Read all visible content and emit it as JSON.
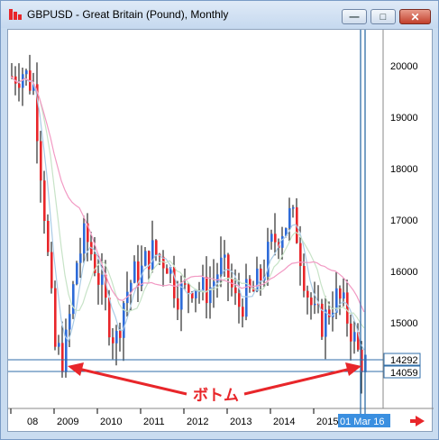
{
  "window": {
    "title": "GBPUSD - Great Britain (Pound), Monthly",
    "minimize_glyph": "—",
    "maximize_glyph": "□",
    "close_glyph": "✕"
  },
  "icons": {
    "app": "chart-app-icon",
    "minimize": "minimize-icon",
    "maximize": "maximize-icon",
    "close": "close-icon",
    "scroll": "scroll-right-arrow-icon"
  },
  "colors": {
    "up_candle": "#2e6bd8",
    "down_candle": "#e8262a",
    "ma_short": "#a9cbe6",
    "ma_mid": "#c7e3c7",
    "ma_long": "#f29ac4",
    "hline": "#2f6ea8",
    "price_tag_bg": "#ffffff",
    "cursor_tag_bg": "#3a8fe0",
    "annotation": "#e8262a"
  },
  "chart_data": {
    "type": "candlestick",
    "y_ticks": [
      "20000",
      "19000",
      "18000",
      "17000",
      "16000",
      "15000"
    ],
    "x_ticks": [
      "08",
      "2009",
      "2010",
      "2011",
      "2012",
      "2013",
      "2014",
      "2015"
    ],
    "price_tags": [
      "14292",
      "14059"
    ],
    "cursor_date": "01 Mar 16",
    "annotation_label": "ボトム",
    "ylim": [
      13300,
      20800
    ],
    "series_close_path": [
      [
        2008.0,
        19800
      ],
      [
        2008.25,
        19900
      ],
      [
        2008.5,
        19600
      ],
      [
        2008.6,
        18700
      ],
      [
        2008.75,
        17200
      ],
      [
        2008.9,
        15500
      ],
      [
        2009.0,
        14500
      ],
      [
        2009.2,
        14300
      ],
      [
        2009.35,
        15200
      ],
      [
        2009.5,
        16200
      ],
      [
        2009.7,
        16700
      ],
      [
        2009.9,
        16200
      ],
      [
        2010.0,
        15900
      ],
      [
        2010.2,
        15200
      ],
      [
        2010.4,
        14600
      ],
      [
        2010.6,
        15500
      ],
      [
        2010.8,
        15900
      ],
      [
        2011.0,
        16000
      ],
      [
        2011.2,
        16400
      ],
      [
        2011.4,
        16300
      ],
      [
        2011.6,
        16200
      ],
      [
        2011.8,
        15600
      ],
      [
        2012.0,
        15600
      ],
      [
        2012.2,
        15800
      ],
      [
        2012.4,
        15600
      ],
      [
        2012.6,
        15700
      ],
      [
        2012.8,
        16100
      ],
      [
        2013.0,
        15900
      ],
      [
        2013.2,
        15300
      ],
      [
        2013.4,
        15500
      ],
      [
        2013.6,
        15600
      ],
      [
        2013.8,
        16000
      ],
      [
        2014.0,
        16500
      ],
      [
        2014.2,
        16800
      ],
      [
        2014.45,
        17100
      ],
      [
        2014.6,
        16700
      ],
      [
        2014.8,
        15700
      ],
      [
        2015.0,
        15100
      ],
      [
        2015.2,
        15000
      ],
      [
        2015.45,
        15500
      ],
      [
        2015.6,
        15400
      ],
      [
        2015.8,
        15000
      ],
      [
        2016.0,
        14400
      ],
      [
        2016.15,
        14200
      ]
    ],
    "grid": false
  }
}
